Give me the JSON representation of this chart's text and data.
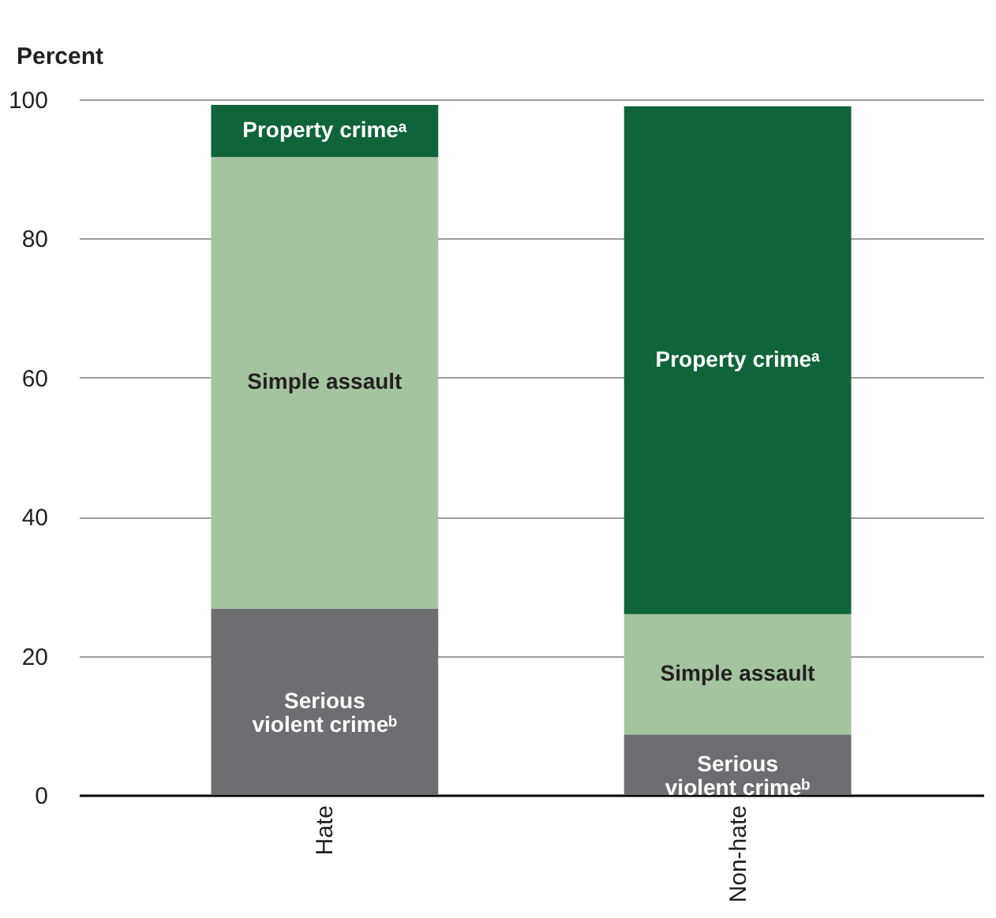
{
  "chart_data": {
    "type": "bar",
    "stacked": true,
    "ylabel": "Percent",
    "categories": [
      "Hate",
      "Non-hate"
    ],
    "series": [
      {
        "name": "Serious violent crimeᵇ",
        "color": "#6d6e71",
        "values": [
          26.8,
          8.7
        ]
      },
      {
        "name": "Simple assault",
        "color": "#a3c49f",
        "values": [
          64.9,
          17.3
        ]
      },
      {
        "name": "Property crimeᵃ",
        "color": "#10643a",
        "values": [
          7.5,
          73.0
        ]
      }
    ],
    "ylim": [
      0,
      100
    ],
    "yticks": [
      0,
      20,
      40,
      60,
      80,
      100
    ],
    "grid": "y"
  }
}
